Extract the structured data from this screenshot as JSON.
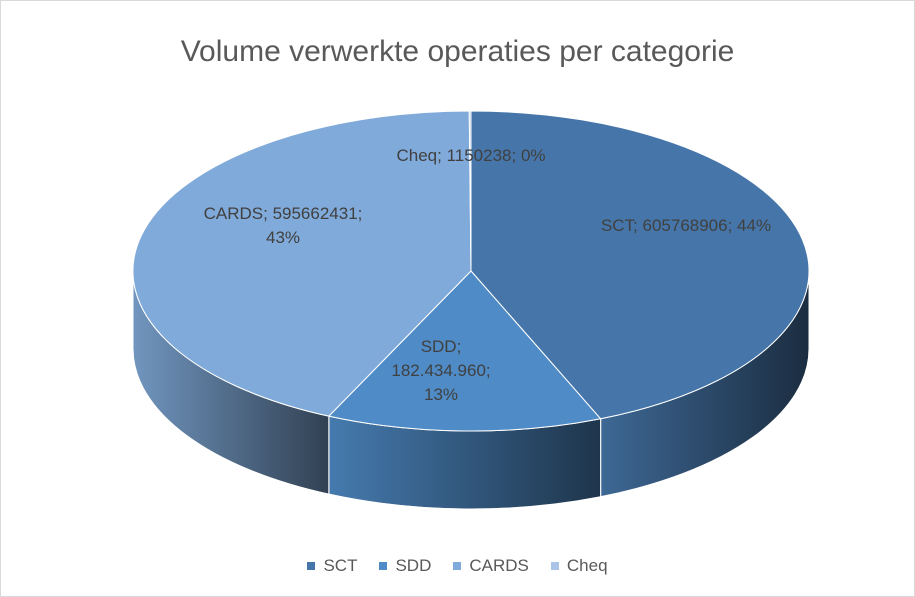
{
  "chart_data": {
    "type": "pie3d",
    "title": "Volume verwerkte operaties per categorie",
    "categories": [
      "SCT",
      "SDD",
      "CARDS",
      "Cheq"
    ],
    "values": [
      605768906,
      182434960,
      595662431,
      1150238
    ],
    "value_labels": [
      "SCT; 605768906; 44%",
      "SDD; 182.434.960; 13%",
      "CARDS; 595662431; 43%",
      "Cheq; 1150238; 0%"
    ],
    "colors": [
      "#4676a9",
      "#4f8bc6",
      "#80aad9",
      "#a9c4e6"
    ],
    "legend": "bottom"
  }
}
